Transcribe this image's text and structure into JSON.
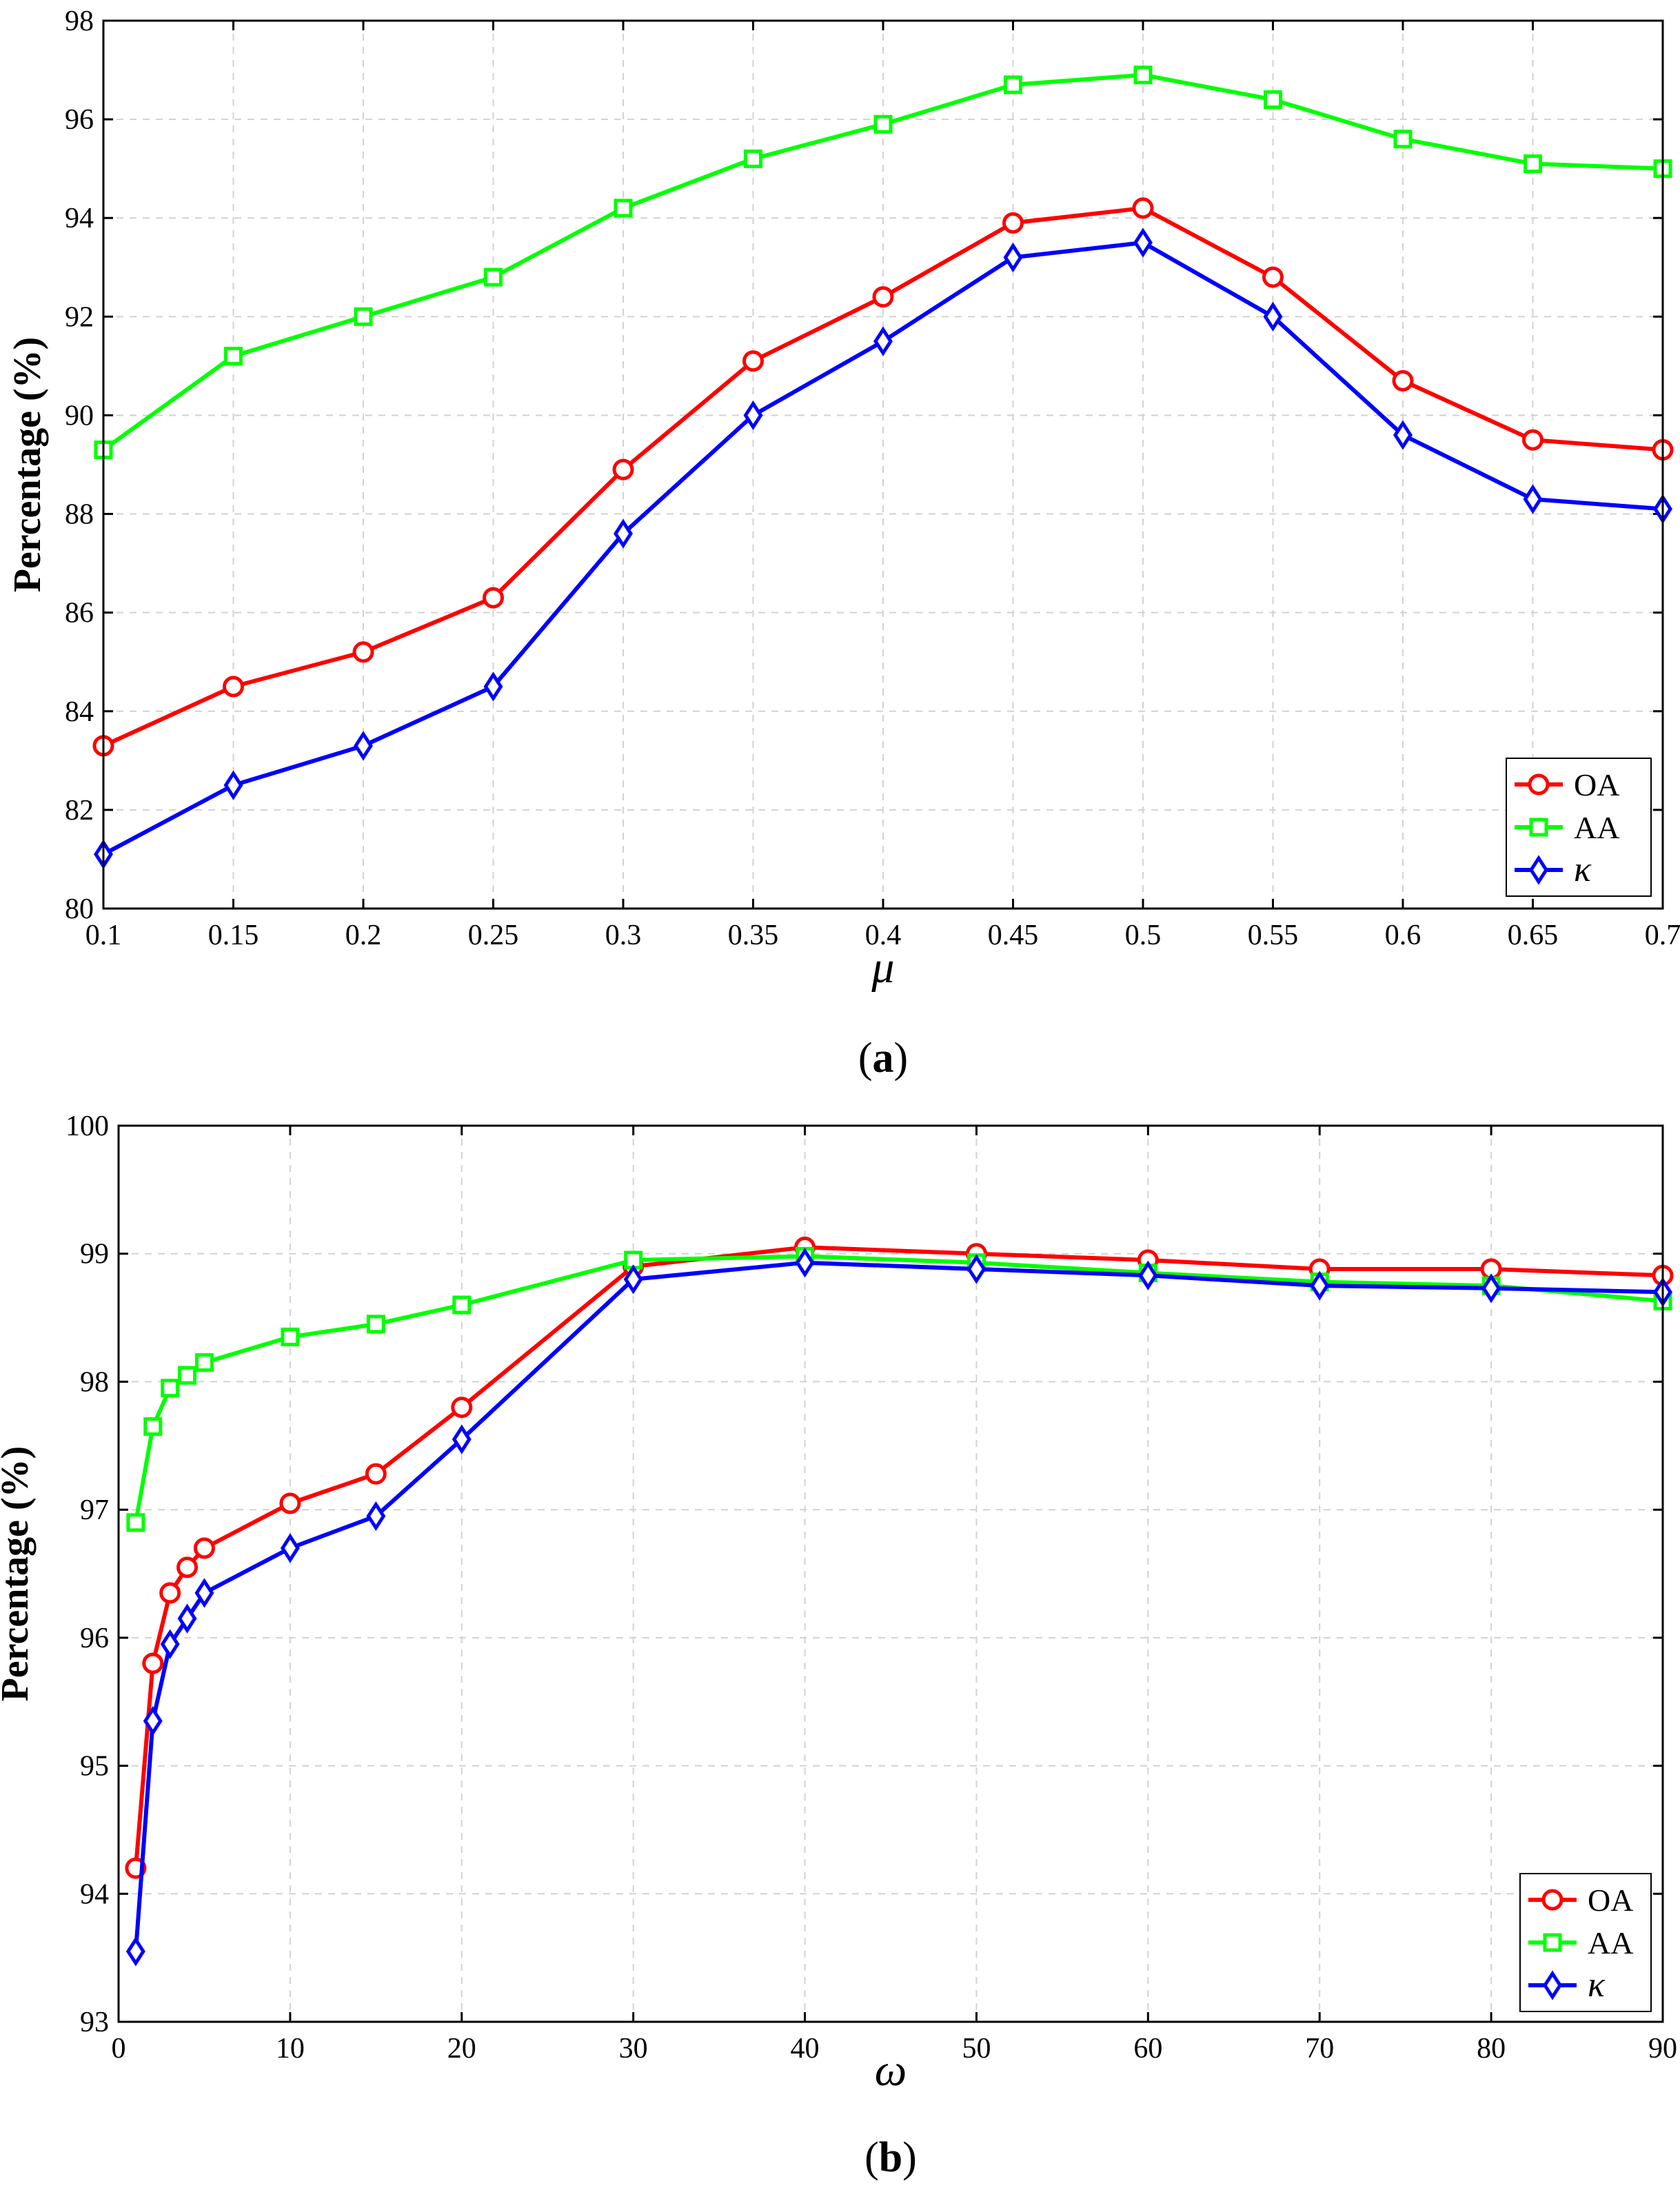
{
  "chart_data": [
    {
      "type": "line",
      "title": "",
      "xlabel": "μ",
      "ylabel": "Percentage (%)",
      "caption_open": "(",
      "caption_letter": "a",
      "caption_close": ")",
      "x": [
        0.1,
        0.15,
        0.2,
        0.25,
        0.3,
        0.35,
        0.4,
        0.45,
        0.5,
        0.55,
        0.6,
        0.65,
        0.7
      ],
      "xticks": [
        "0.1",
        "0.15",
        "0.2",
        "0.25",
        "0.3",
        "0.35",
        "0.4",
        "0.45",
        "0.5",
        "0.55",
        "0.6",
        "0.65",
        "0.7"
      ],
      "xtick_values": [
        0.1,
        0.15,
        0.2,
        0.25,
        0.3,
        0.35,
        0.4,
        0.45,
        0.5,
        0.55,
        0.6,
        0.65,
        0.7
      ],
      "yticks": [
        "80",
        "82",
        "84",
        "86",
        "88",
        "90",
        "92",
        "94",
        "96",
        "98"
      ],
      "ytick_values": [
        80,
        82,
        84,
        86,
        88,
        90,
        92,
        94,
        96,
        98
      ],
      "xlim": [
        0.1,
        0.7
      ],
      "ylim": [
        80,
        98
      ],
      "grid": true,
      "legend_position": "bottom-right",
      "series": [
        {
          "name": "OA",
          "color": "#ff0000",
          "marker": "circle",
          "values": [
            83.3,
            84.5,
            85.2,
            86.3,
            88.9,
            91.1,
            92.4,
            93.9,
            94.2,
            92.8,
            90.7,
            89.5,
            89.3
          ]
        },
        {
          "name": "AA",
          "color": "#00ff00",
          "marker": "square",
          "values": [
            89.3,
            91.2,
            92.0,
            92.8,
            94.2,
            95.2,
            95.9,
            96.7,
            96.9,
            96.4,
            95.6,
            95.1,
            95.0
          ]
        },
        {
          "name": "κ",
          "color": "#0000ff",
          "marker": "diamond",
          "values": [
            81.1,
            82.5,
            83.3,
            84.5,
            87.6,
            90.0,
            91.5,
            93.2,
            93.5,
            92.0,
            89.6,
            88.3,
            88.1
          ]
        }
      ]
    },
    {
      "type": "line",
      "title": "",
      "xlabel": "ω",
      "ylabel": "Percentage (%)",
      "caption_open": "(",
      "caption_letter": "b",
      "caption_close": ")",
      "x": [
        1,
        2,
        3,
        4,
        5,
        10,
        15,
        20,
        30,
        40,
        50,
        60,
        70,
        80,
        90
      ],
      "xticks": [
        "0",
        "10",
        "20",
        "30",
        "40",
        "50",
        "60",
        "70",
        "80",
        "90"
      ],
      "xtick_values": [
        0,
        10,
        20,
        30,
        40,
        50,
        60,
        70,
        80,
        90
      ],
      "yticks": [
        "93",
        "94",
        "95",
        "96",
        "97",
        "98",
        "99",
        "100"
      ],
      "ytick_values": [
        93,
        94,
        95,
        96,
        97,
        98,
        99,
        100
      ],
      "xlim": [
        0,
        90
      ],
      "ylim": [
        93,
        100
      ],
      "grid": true,
      "legend_position": "bottom-right",
      "series": [
        {
          "name": "OA",
          "color": "#ff0000",
          "marker": "circle",
          "values": [
            94.2,
            95.8,
            96.35,
            96.55,
            96.7,
            97.05,
            97.28,
            97.8,
            98.9,
            99.05,
            99.0,
            98.95,
            98.88,
            98.88,
            98.83
          ]
        },
        {
          "name": "AA",
          "color": "#00ff00",
          "marker": "square",
          "values": [
            96.9,
            97.65,
            97.95,
            98.05,
            98.15,
            98.35,
            98.45,
            98.6,
            98.95,
            98.98,
            98.93,
            98.85,
            98.78,
            98.75,
            98.63
          ]
        },
        {
          "name": "κ",
          "color": "#0000ff",
          "marker": "diamond",
          "values": [
            93.55,
            95.35,
            95.95,
            96.15,
            96.35,
            96.7,
            96.95,
            97.55,
            98.8,
            98.93,
            98.88,
            98.83,
            98.75,
            98.73,
            98.7
          ]
        }
      ]
    }
  ]
}
